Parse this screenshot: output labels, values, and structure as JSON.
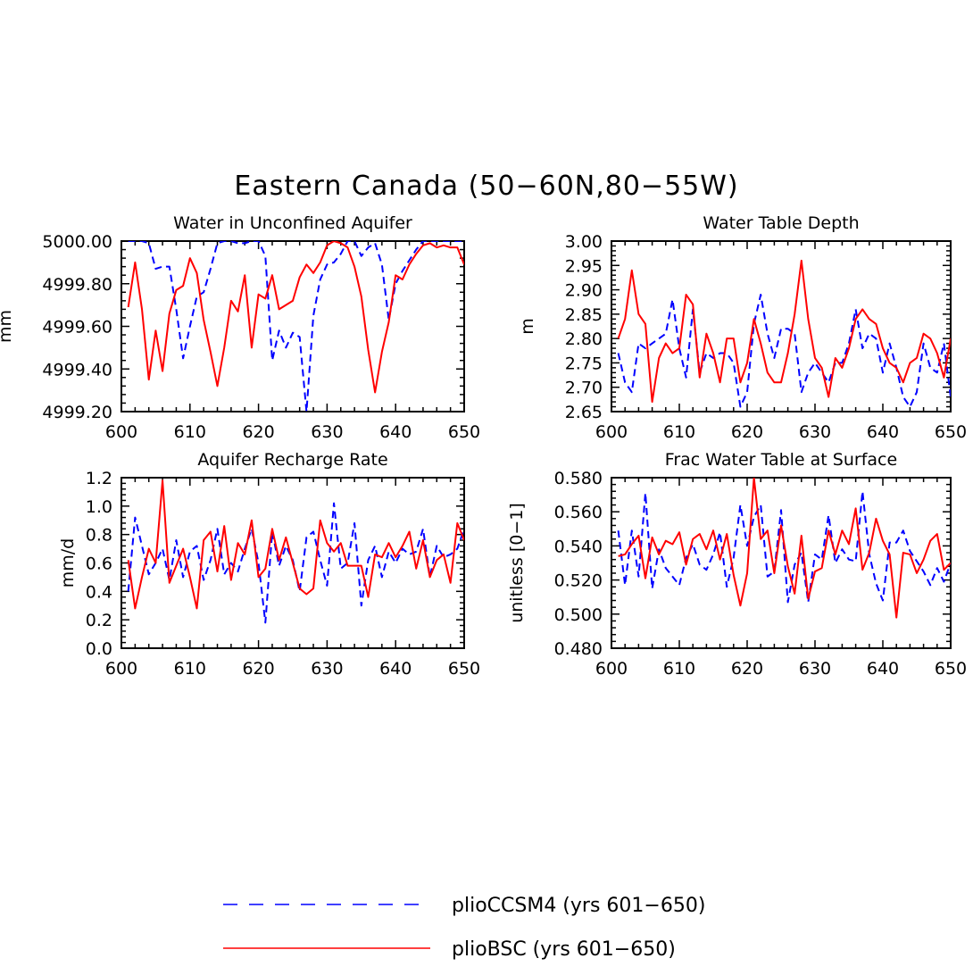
{
  "title": "Eastern Canada (50−60N,80−55W)",
  "colors": {
    "ccsm4": "#0000ff",
    "bsc": "#ff0000",
    "axis": "#000000"
  },
  "legend": [
    {
      "key": "ccsm4",
      "label": "plioCCSM4 (yrs 601−650)",
      "style": "dashed"
    },
    {
      "key": "bsc",
      "label": "plioBSC (yrs 601−650)",
      "style": "solid"
    }
  ],
  "chart_data": [
    {
      "type": "line",
      "title": "Water in Unconfined Aquifer",
      "ylabel": "mm",
      "xlim": [
        600,
        650
      ],
      "ylim": [
        4999.2,
        5000.0
      ],
      "xticks": [
        "600",
        "610",
        "620",
        "630",
        "640",
        "650"
      ],
      "yticks": [
        "5000.00",
        "4999.80",
        "4999.60",
        "4999.40",
        "4999.20"
      ],
      "x": [
        601,
        602,
        603,
        604,
        605,
        606,
        607,
        608,
        609,
        610,
        611,
        612,
        613,
        614,
        615,
        616,
        617,
        618,
        619,
        620,
        621,
        622,
        623,
        624,
        625,
        626,
        627,
        628,
        629,
        630,
        631,
        632,
        633,
        634,
        635,
        636,
        637,
        638,
        639,
        640,
        641,
        642,
        643,
        644,
        645,
        646,
        647,
        648,
        649,
        650
      ],
      "series": [
        {
          "name": "plioCCSM4 (yrs 601−650)",
          "key": "ccsm4",
          "values": [
            5000.0,
            5000.0,
            5000.0,
            4999.99,
            4999.87,
            4999.88,
            4999.88,
            4999.68,
            4999.45,
            4999.6,
            4999.74,
            4999.76,
            4999.87,
            4999.99,
            5000.0,
            5000.0,
            4999.99,
            4999.99,
            5000.0,
            5000.0,
            4999.93,
            4999.44,
            4999.58,
            4999.5,
            4999.57,
            4999.55,
            4999.2,
            4999.65,
            4999.82,
            4999.89,
            4999.9,
            4999.94,
            5000.0,
            5000.0,
            4999.93,
            4999.97,
            4999.99,
            4999.89,
            4999.63,
            4999.8,
            4999.86,
            4999.91,
            4999.96,
            5000.0,
            5000.0,
            5000.0,
            5000.0,
            5000.0,
            5000.0,
            5000.0
          ]
        },
        {
          "name": "plioBSC (yrs 601−650)",
          "key": "bsc",
          "values": [
            4999.69,
            4999.9,
            4999.68,
            4999.35,
            4999.58,
            4999.39,
            4999.66,
            4999.77,
            4999.79,
            4999.92,
            4999.85,
            4999.63,
            4999.48,
            4999.32,
            4999.5,
            4999.72,
            4999.67,
            4999.84,
            4999.5,
            4999.75,
            4999.73,
            4999.84,
            4999.68,
            4999.7,
            4999.72,
            4999.83,
            4999.89,
            4999.85,
            4999.9,
            4999.98,
            5000.0,
            4999.99,
            4999.97,
            4999.88,
            4999.74,
            4999.49,
            4999.29,
            4999.48,
            4999.62,
            4999.84,
            4999.82,
            4999.89,
            4999.94,
            4999.98,
            4999.99,
            4999.97,
            4999.98,
            4999.97,
            4999.97,
            4999.89
          ]
        }
      ]
    },
    {
      "type": "line",
      "title": "Water Table Depth",
      "ylabel": "m",
      "xlim": [
        600,
        650
      ],
      "ylim": [
        2.65,
        3.0
      ],
      "xticks": [
        "600",
        "610",
        "620",
        "630",
        "640",
        "650"
      ],
      "yticks": [
        "3.00",
        "2.95",
        "2.90",
        "2.85",
        "2.80",
        "2.75",
        "2.70",
        "2.65"
      ],
      "x": [
        601,
        602,
        603,
        604,
        605,
        606,
        607,
        608,
        609,
        610,
        611,
        612,
        613,
        614,
        615,
        616,
        617,
        618,
        619,
        620,
        621,
        622,
        623,
        624,
        625,
        626,
        627,
        628,
        629,
        630,
        631,
        632,
        633,
        634,
        635,
        636,
        637,
        638,
        639,
        640,
        641,
        642,
        643,
        644,
        645,
        646,
        647,
        648,
        649,
        650
      ],
      "series": [
        {
          "name": "plioCCSM4 (yrs 601−650)",
          "key": "ccsm4",
          "values": [
            2.77,
            2.71,
            2.69,
            2.79,
            2.78,
            2.79,
            2.8,
            2.81,
            2.88,
            2.78,
            2.72,
            2.86,
            2.73,
            2.77,
            2.76,
            2.77,
            2.77,
            2.75,
            2.66,
            2.69,
            2.83,
            2.89,
            2.81,
            2.76,
            2.82,
            2.82,
            2.81,
            2.69,
            2.73,
            2.75,
            2.73,
            2.71,
            2.75,
            2.75,
            2.79,
            2.86,
            2.78,
            2.81,
            2.8,
            2.73,
            2.79,
            2.74,
            2.68,
            2.66,
            2.69,
            2.79,
            2.74,
            2.73,
            2.79,
            2.68
          ]
        },
        {
          "name": "plioBSC (yrs 601−650)",
          "key": "bsc",
          "values": [
            2.8,
            2.84,
            2.94,
            2.85,
            2.83,
            2.67,
            2.76,
            2.79,
            2.77,
            2.78,
            2.89,
            2.87,
            2.72,
            2.81,
            2.77,
            2.71,
            2.8,
            2.8,
            2.71,
            2.75,
            2.84,
            2.79,
            2.73,
            2.71,
            2.71,
            2.77,
            2.85,
            2.96,
            2.84,
            2.76,
            2.74,
            2.68,
            2.76,
            2.74,
            2.78,
            2.84,
            2.86,
            2.84,
            2.83,
            2.78,
            2.75,
            2.74,
            2.71,
            2.75,
            2.76,
            2.81,
            2.8,
            2.77,
            2.72,
            2.8
          ]
        }
      ]
    },
    {
      "type": "line",
      "title": "Aquifer Recharge Rate",
      "ylabel": "mm/d",
      "xlim": [
        600,
        650
      ],
      "ylim": [
        0.0,
        1.2
      ],
      "xticks": [
        "600",
        "610",
        "620",
        "630",
        "640",
        "650"
      ],
      "yticks": [
        "1.2",
        "1.0",
        "0.8",
        "0.6",
        "0.4",
        "0.2",
        "0.0"
      ],
      "x": [
        601,
        602,
        603,
        604,
        605,
        606,
        607,
        608,
        609,
        610,
        611,
        612,
        613,
        614,
        615,
        616,
        617,
        618,
        619,
        620,
        621,
        622,
        623,
        624,
        625,
        626,
        627,
        628,
        629,
        630,
        631,
        632,
        633,
        634,
        635,
        636,
        637,
        638,
        639,
        640,
        641,
        642,
        643,
        644,
        645,
        646,
        647,
        648,
        649,
        650
      ],
      "series": [
        {
          "name": "plioCCSM4 (yrs 601−650)",
          "key": "ccsm4",
          "values": [
            0.4,
            0.92,
            0.72,
            0.52,
            0.6,
            0.7,
            0.48,
            0.76,
            0.5,
            0.68,
            0.72,
            0.48,
            0.62,
            0.84,
            0.52,
            0.6,
            0.54,
            0.7,
            0.84,
            0.6,
            0.18,
            0.82,
            0.58,
            0.72,
            0.62,
            0.4,
            0.78,
            0.82,
            0.62,
            0.44,
            1.02,
            0.56,
            0.6,
            0.88,
            0.3,
            0.62,
            0.72,
            0.5,
            0.68,
            0.6,
            0.7,
            0.66,
            0.68,
            0.84,
            0.5,
            0.72,
            0.64,
            0.66,
            0.7,
            0.84
          ]
        },
        {
          "name": "plioBSC (yrs 601−650)",
          "key": "bsc",
          "values": [
            0.62,
            0.28,
            0.5,
            0.7,
            0.6,
            1.18,
            0.46,
            0.58,
            0.7,
            0.5,
            0.28,
            0.76,
            0.82,
            0.54,
            0.86,
            0.48,
            0.74,
            0.66,
            0.9,
            0.5,
            0.56,
            0.84,
            0.62,
            0.78,
            0.6,
            0.42,
            0.38,
            0.42,
            0.9,
            0.74,
            0.68,
            0.74,
            0.58,
            0.58,
            0.58,
            0.36,
            0.66,
            0.64,
            0.74,
            0.64,
            0.72,
            0.82,
            0.56,
            0.76,
            0.5,
            0.62,
            0.66,
            0.46,
            0.88,
            0.76
          ]
        }
      ]
    },
    {
      "type": "line",
      "title": "Frac Water Table at Surface",
      "ylabel": "unitless [0−1]",
      "xlim": [
        600,
        650
      ],
      "ylim": [
        0.48,
        0.58
      ],
      "xticks": [
        "600",
        "610",
        "620",
        "630",
        "640",
        "650"
      ],
      "yticks": [
        "0.580",
        "0.560",
        "0.540",
        "0.520",
        "0.500",
        "0.480"
      ],
      "x": [
        601,
        602,
        603,
        604,
        605,
        606,
        607,
        608,
        609,
        610,
        611,
        612,
        613,
        614,
        615,
        616,
        617,
        618,
        619,
        620,
        621,
        622,
        623,
        624,
        625,
        626,
        627,
        628,
        629,
        630,
        631,
        632,
        633,
        634,
        635,
        636,
        637,
        638,
        639,
        640,
        641,
        642,
        643,
        644,
        645,
        646,
        647,
        648,
        649,
        650
      ],
      "series": [
        {
          "name": "plioCCSM4 (yrs 601−650)",
          "key": "ccsm4",
          "values": [
            0.549,
            0.517,
            0.549,
            0.522,
            0.571,
            0.515,
            0.538,
            0.527,
            0.522,
            0.517,
            0.533,
            0.541,
            0.529,
            0.526,
            0.535,
            0.548,
            0.516,
            0.533,
            0.564,
            0.54,
            0.557,
            0.564,
            0.522,
            0.525,
            0.561,
            0.507,
            0.529,
            0.536,
            0.507,
            0.535,
            0.532,
            0.558,
            0.53,
            0.538,
            0.532,
            0.531,
            0.572,
            0.535,
            0.518,
            0.508,
            0.542,
            0.542,
            0.549,
            0.537,
            0.531,
            0.525,
            0.517,
            0.527,
            0.519,
            0.53
          ]
        },
        {
          "name": "plioBSC (yrs 601−650)",
          "key": "bsc",
          "values": [
            0.534,
            0.535,
            0.541,
            0.546,
            0.521,
            0.545,
            0.535,
            0.543,
            0.541,
            0.548,
            0.529,
            0.544,
            0.547,
            0.538,
            0.549,
            0.532,
            0.547,
            0.523,
            0.505,
            0.524,
            0.58,
            0.544,
            0.549,
            0.524,
            0.552,
            0.528,
            0.512,
            0.546,
            0.509,
            0.525,
            0.527,
            0.549,
            0.535,
            0.549,
            0.541,
            0.562,
            0.526,
            0.536,
            0.556,
            0.543,
            0.535,
            0.498,
            0.536,
            0.535,
            0.524,
            0.532,
            0.543,
            0.547,
            0.526,
            0.53
          ]
        }
      ]
    }
  ]
}
